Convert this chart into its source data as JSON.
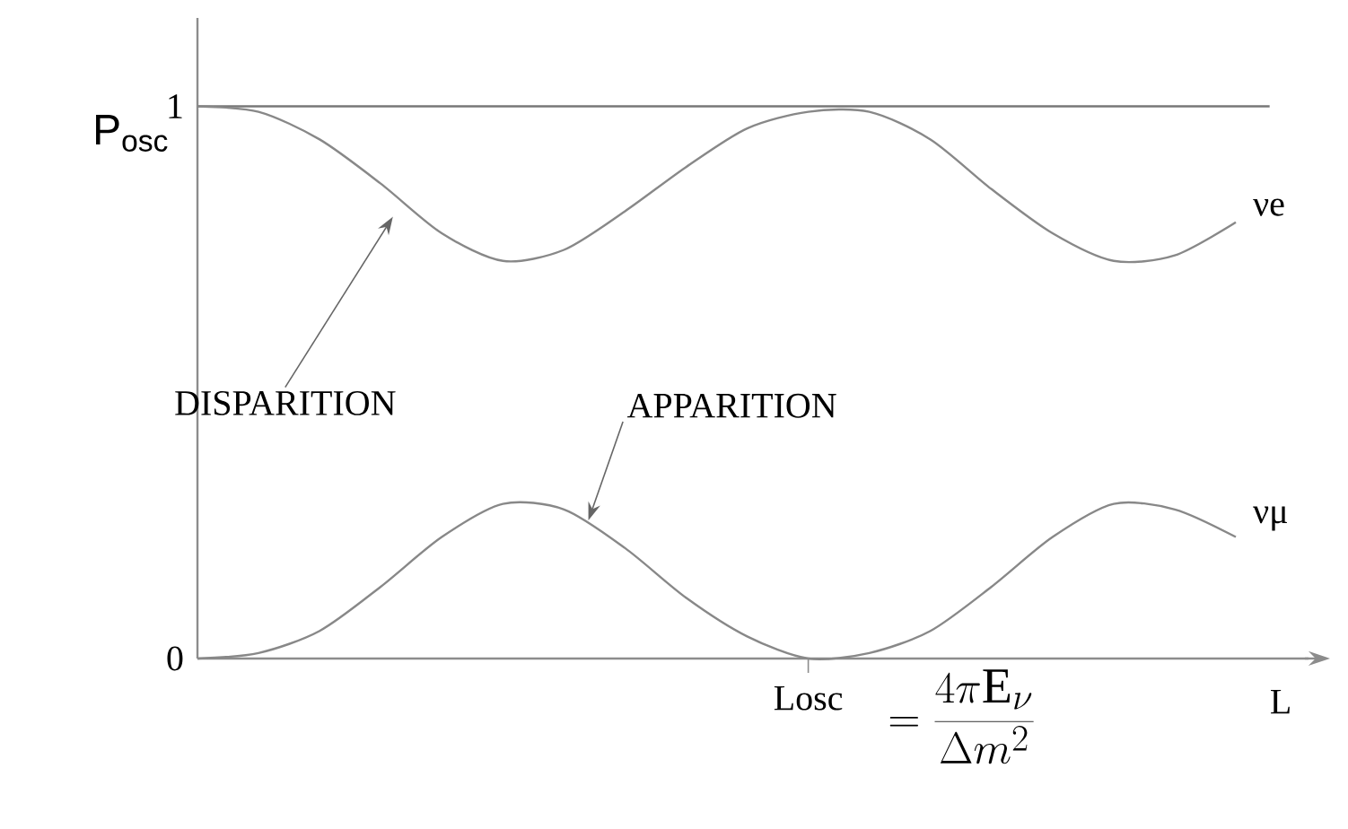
{
  "chart_data": {
    "type": "line",
    "xlabel": "L",
    "ylabel": "P$_{osc}$",
    "categories": [
      null,
      null,
      null,
      null,
      null,
      null,
      null,
      null,
      null,
      null,
      null,
      null,
      null,
      null,
      null,
      null,
      null,
      null
    ],
    "ylim": [
      0,
      1.16
    ],
    "yticks": [
      {
        "value": 0,
        "label": "0"
      },
      {
        "value": 1,
        "label": "1"
      }
    ],
    "grid": false,
    "marker": "none",
    "line_style": "solid",
    "ref_lines": [
      {
        "axis": "y",
        "value": 1,
        "color": "#777777"
      }
    ],
    "series": [
      {
        "name": "νe",
        "color": "#888888",
        "values": [
          1,
          0.99,
          0.94,
          0.86,
          0.77,
          0.72,
          0.74,
          0.81,
          0.89,
          0.96,
          0.99,
          0.99,
          0.94,
          0.85,
          0.77,
          0.72,
          0.73,
          0.79
        ]
      },
      {
        "name": "νμ",
        "color": "#888888",
        "values": [
          0,
          0.01,
          0.05,
          0.13,
          0.22,
          0.28,
          0.27,
          0.2,
          0.11,
          0.04,
          0,
          0.01,
          0.05,
          0.13,
          0.22,
          0.28,
          0.27,
          0.22
        ]
      }
    ],
    "annotations": [
      "DISPARITION",
      "APPARITION",
      "Losc",
      "= \\frac{4\\pi \\mathrm{E}_{\\nu}}{\\Delta m^{2}}"
    ]
  }
}
